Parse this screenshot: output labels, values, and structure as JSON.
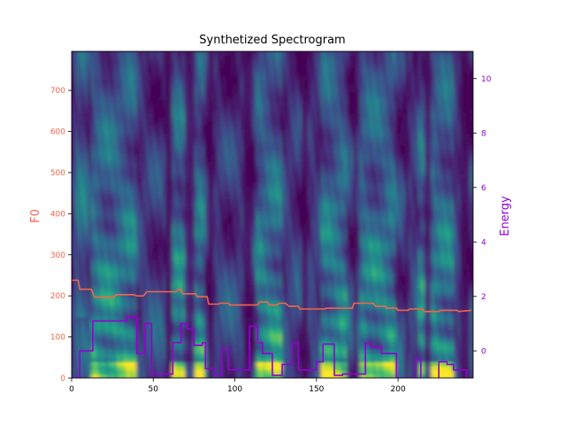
{
  "chart_data": {
    "type": "heatmap",
    "title": "Synthetized Spectrogram",
    "background": "spectrogram (viridis colormap), frequency bins 0-80 over frames 0-246",
    "colormap": "viridis",
    "x": {
      "label": "",
      "range": [
        0,
        246
      ],
      "ticks": [
        0,
        50,
        100,
        150,
        200
      ]
    },
    "y_left": {
      "label": "F0",
      "color": "#f4644b",
      "range": [
        0,
        795
      ],
      "ticks": [
        0,
        100,
        200,
        300,
        400,
        500,
        600,
        700
      ]
    },
    "y_right": {
      "label": "Energy",
      "color": "#9400d3",
      "range": [
        -1.0,
        11.0
      ],
      "ticks": [
        0,
        2,
        4,
        6,
        8,
        10
      ]
    },
    "series": [
      {
        "name": "F0",
        "axis": "left",
        "color": "#f4644b",
        "points": [
          [
            0,
            238
          ],
          [
            4,
            238
          ],
          [
            5,
            216
          ],
          [
            12,
            216
          ],
          [
            13,
            207
          ],
          [
            14,
            197
          ],
          [
            26,
            197
          ],
          [
            27,
            203
          ],
          [
            38,
            203
          ],
          [
            40,
            200
          ],
          [
            44,
            200
          ],
          [
            46,
            210
          ],
          [
            64,
            210
          ],
          [
            65,
            215
          ],
          [
            67,
            215
          ],
          [
            68,
            205
          ],
          [
            76,
            205
          ],
          [
            77,
            198
          ],
          [
            83,
            198
          ],
          [
            84,
            180
          ],
          [
            90,
            180
          ],
          [
            91,
            182
          ],
          [
            96,
            182
          ],
          [
            97,
            178
          ],
          [
            114,
            178
          ],
          [
            115,
            185
          ],
          [
            120,
            185
          ],
          [
            121,
            178
          ],
          [
            126,
            178
          ],
          [
            127,
            182
          ],
          [
            131,
            182
          ],
          [
            133,
            175
          ],
          [
            139,
            175
          ],
          [
            140,
            168
          ],
          [
            155,
            168
          ],
          [
            156,
            170
          ],
          [
            172,
            170
          ],
          [
            173,
            182
          ],
          [
            185,
            182
          ],
          [
            186,
            175
          ],
          [
            192,
            175
          ],
          [
            193,
            170
          ],
          [
            199,
            170
          ],
          [
            200,
            165
          ],
          [
            206,
            165
          ],
          [
            207,
            168
          ],
          [
            215,
            168
          ],
          [
            216,
            162
          ],
          [
            225,
            162
          ],
          [
            226,
            165
          ],
          [
            236,
            165
          ],
          [
            237,
            162
          ],
          [
            245,
            165
          ]
        ]
      },
      {
        "name": "Energy",
        "axis": "right",
        "color": "#9400d3",
        "points": [
          [
            0,
            -1.0
          ],
          [
            5,
            -1.0
          ],
          [
            5,
            0.0
          ],
          [
            13,
            0.0
          ],
          [
            13,
            1.1
          ],
          [
            34,
            1.1
          ],
          [
            34,
            1.25
          ],
          [
            40,
            1.25
          ],
          [
            40,
            -0.1
          ],
          [
            45,
            -0.1
          ],
          [
            45,
            1.0
          ],
          [
            49,
            1.0
          ],
          [
            49,
            -0.85
          ],
          [
            62,
            -0.85
          ],
          [
            62,
            0.3
          ],
          [
            67,
            0.3
          ],
          [
            67,
            1.0
          ],
          [
            71,
            1.0
          ],
          [
            71,
            0.8
          ],
          [
            75,
            0.8
          ],
          [
            75,
            0.2
          ],
          [
            80,
            0.2
          ],
          [
            80,
            0.3
          ],
          [
            82,
            0.3
          ],
          [
            82,
            -0.65
          ],
          [
            88,
            -0.65
          ],
          [
            88,
            -0.9
          ],
          [
            92,
            -0.9
          ],
          [
            92,
            0.1
          ],
          [
            96,
            0.1
          ],
          [
            96,
            -0.7
          ],
          [
            109,
            -0.7
          ],
          [
            109,
            0.9
          ],
          [
            114,
            0.9
          ],
          [
            114,
            0.3
          ],
          [
            117,
            0.3
          ],
          [
            117,
            -0.1
          ],
          [
            123,
            -0.1
          ],
          [
            123,
            -0.9
          ],
          [
            129,
            -0.9
          ],
          [
            129,
            -0.5
          ],
          [
            135,
            -0.5
          ],
          [
            135,
            0.3
          ],
          [
            139,
            0.3
          ],
          [
            139,
            -0.7
          ],
          [
            150,
            -0.7
          ],
          [
            150,
            -0.4
          ],
          [
            154,
            -0.4
          ],
          [
            154,
            0.25
          ],
          [
            161,
            0.25
          ],
          [
            161,
            -0.9
          ],
          [
            166,
            -0.9
          ],
          [
            166,
            -0.85
          ],
          [
            180,
            -0.85
          ],
          [
            180,
            0.3
          ],
          [
            183,
            0.3
          ],
          [
            183,
            0.15
          ],
          [
            190,
            0.15
          ],
          [
            190,
            -0.1
          ],
          [
            199,
            -0.1
          ],
          [
            199,
            -1.0
          ],
          [
            211,
            -1.0
          ],
          [
            211,
            -0.3
          ],
          [
            214,
            -0.3
          ],
          [
            214,
            -1.05
          ],
          [
            225,
            -1.05
          ],
          [
            225,
            -0.4
          ],
          [
            230,
            -0.4
          ],
          [
            230,
            -0.5
          ],
          [
            234,
            -0.5
          ],
          [
            234,
            -0.7
          ],
          [
            242,
            -0.7
          ],
          [
            242,
            -1.1
          ],
          [
            245,
            -1.1
          ]
        ]
      }
    ]
  }
}
